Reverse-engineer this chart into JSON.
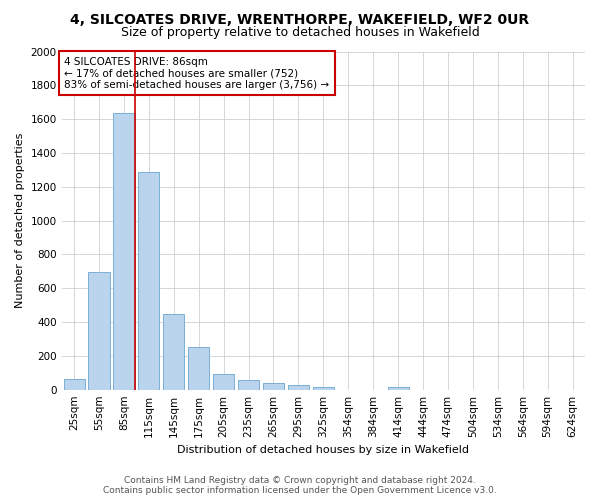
{
  "title1": "4, SILCOATES DRIVE, WRENTHORPE, WAKEFIELD, WF2 0UR",
  "title2": "Size of property relative to detached houses in Wakefield",
  "xlabel": "Distribution of detached houses by size in Wakefield",
  "ylabel": "Number of detached properties",
  "categories": [
    "25sqm",
    "55sqm",
    "85sqm",
    "115sqm",
    "145sqm",
    "175sqm",
    "205sqm",
    "235sqm",
    "265sqm",
    "295sqm",
    "325sqm",
    "354sqm",
    "384sqm",
    "414sqm",
    "444sqm",
    "474sqm",
    "504sqm",
    "534sqm",
    "564sqm",
    "594sqm",
    "624sqm"
  ],
  "values": [
    65,
    695,
    1635,
    1285,
    445,
    252,
    90,
    55,
    38,
    28,
    18,
    0,
    0,
    18,
    0,
    0,
    0,
    0,
    0,
    0,
    0
  ],
  "bar_color": "#bad4ed",
  "bar_edge_color": "#7aafd4",
  "vline_color": "#cc0000",
  "vline_x_index": 2,
  "annotation_text": "4 SILCOATES DRIVE: 86sqm\n← 17% of detached houses are smaller (752)\n83% of semi-detached houses are larger (3,756) →",
  "annotation_box_color": "#ffffff",
  "annotation_border_color": "#cc0000",
  "ylim": [
    0,
    2000
  ],
  "yticks": [
    0,
    200,
    400,
    600,
    800,
    1000,
    1200,
    1400,
    1600,
    1800,
    2000
  ],
  "footer1": "Contains HM Land Registry data © Crown copyright and database right 2024.",
  "footer2": "Contains public sector information licensed under the Open Government Licence v3.0.",
  "bg_color": "#ffffff",
  "grid_color": "#d0d0d0",
  "title1_fontsize": 10,
  "title2_fontsize": 9,
  "axis_label_fontsize": 8,
  "tick_fontsize": 7.5,
  "annotation_fontsize": 7.5,
  "footer_fontsize": 6.5
}
